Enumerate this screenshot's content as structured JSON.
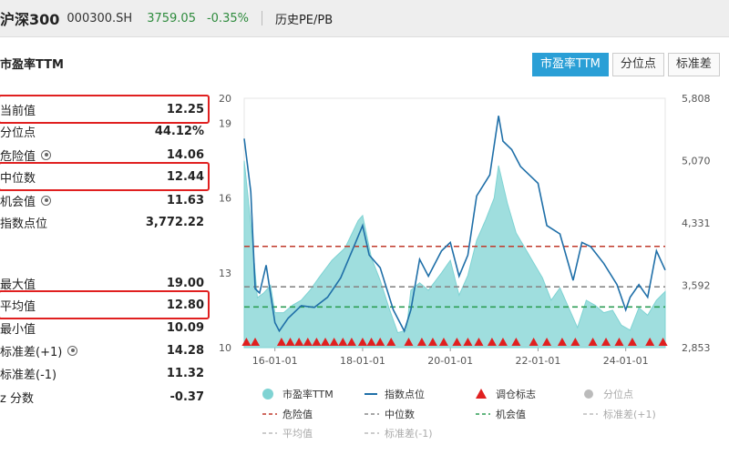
{
  "header": {
    "title": "沪深300",
    "code": "000300.SH",
    "price": "3759.05",
    "change": "-0.35%",
    "history_label": "历史PE/PB"
  },
  "section_title": "市盈率TTM",
  "tabs": [
    "市盈率TTM",
    "分位点",
    "标准差"
  ],
  "stats": [
    {
      "label": "当前值",
      "value": "12.25",
      "highlight": true
    },
    {
      "label": "分位点",
      "value": "44.12%"
    },
    {
      "label": "危险值",
      "value": "14.06",
      "icon": "gear-icon"
    },
    {
      "label": "中位数",
      "value": "12.44",
      "highlight": true
    },
    {
      "label": "机会值",
      "value": "11.63",
      "icon": "gear-icon"
    },
    {
      "label": "指数点位",
      "value": "3,772.22"
    },
    {
      "label": "最大值",
      "value": "19.00"
    },
    {
      "label": "平均值",
      "value": "12.80",
      "highlight": true
    },
    {
      "label": "最小值",
      "value": "10.09"
    },
    {
      "label": "标准差(+1)",
      "value": "14.28",
      "icon": "gear-icon"
    },
    {
      "label": "标准差(-1)",
      "value": "11.32"
    },
    {
      "label": "z 分数",
      "value": "-0.37"
    }
  ],
  "colors": {
    "pe_area": "#7fd3d3",
    "index_line": "#1f6fa8",
    "danger": "#c0392b",
    "median": "#888888",
    "opportunity": "#2e9e55",
    "marker": "#e02020",
    "accent": "#2a9fd6",
    "highlight_box": "#e02020"
  },
  "chart_data": {
    "type": "area",
    "x_ticks": [
      "16-01-01",
      "18-01-01",
      "20-01-01",
      "22-01-01",
      "24-01-01"
    ],
    "y_left_ticks": [
      "10",
      "13",
      "16",
      "19",
      "20"
    ],
    "y_right_ticks": [
      "2,853",
      "3,592",
      "4,331",
      "5,070",
      "5,808"
    ],
    "y_left_range": [
      10,
      20
    ],
    "y_right_range": [
      2853,
      5808
    ],
    "x_range": [
      2015.3,
      2024.9
    ],
    "reference_lines": {
      "danger": 14.06,
      "median": 12.44,
      "opportunity": 11.63
    },
    "series": [
      {
        "name": "市盈率TTM",
        "axis": "left",
        "x": [
          2015.3,
          2015.45,
          2015.6,
          2015.75,
          2015.9,
          2016.0,
          2016.2,
          2016.4,
          2016.6,
          2016.8,
          2017.0,
          2017.3,
          2017.6,
          2017.9,
          2018.0,
          2018.2,
          2018.4,
          2018.6,
          2018.8,
          2019.0,
          2019.1,
          2019.3,
          2019.5,
          2019.8,
          2020.0,
          2020.2,
          2020.4,
          2020.6,
          2020.8,
          2021.0,
          2021.1,
          2021.3,
          2021.5,
          2021.7,
          2021.9,
          2022.1,
          2022.3,
          2022.5,
          2022.7,
          2022.9,
          2023.1,
          2023.3,
          2023.5,
          2023.7,
          2023.9,
          2024.1,
          2024.3,
          2024.5,
          2024.7,
          2024.9
        ],
        "values": [
          17.5,
          15.0,
          12.0,
          12.2,
          12.5,
          11.4,
          11.4,
          11.7,
          11.9,
          12.3,
          12.8,
          13.5,
          14.0,
          15.1,
          15.3,
          13.6,
          12.7,
          11.6,
          10.6,
          10.7,
          12.3,
          12.6,
          12.3,
          13.0,
          13.5,
          12.1,
          12.9,
          14.3,
          15.1,
          16.0,
          17.3,
          15.8,
          14.6,
          14.0,
          13.4,
          12.8,
          11.9,
          12.4,
          11.6,
          10.8,
          11.9,
          11.7,
          11.4,
          11.5,
          10.9,
          10.7,
          11.6,
          11.3,
          11.9,
          12.25
        ]
      },
      {
        "name": "指数点位",
        "axis": "right",
        "x": [
          2015.3,
          2015.45,
          2015.55,
          2015.65,
          2015.8,
          2016.0,
          2016.1,
          2016.3,
          2016.6,
          2016.9,
          2017.2,
          2017.5,
          2017.8,
          2018.0,
          2018.15,
          2018.4,
          2018.7,
          2018.95,
          2019.1,
          2019.3,
          2019.5,
          2019.8,
          2020.0,
          2020.2,
          2020.4,
          2020.6,
          2020.9,
          2021.1,
          2021.2,
          2021.4,
          2021.6,
          2021.8,
          2022.0,
          2022.2,
          2022.5,
          2022.8,
          2023.0,
          2023.2,
          2023.5,
          2023.8,
          2024.0,
          2024.1,
          2024.3,
          2024.5,
          2024.7,
          2024.9
        ],
        "values": [
          5330,
          4700,
          3550,
          3500,
          3830,
          3150,
          3050,
          3200,
          3350,
          3330,
          3450,
          3680,
          4050,
          4300,
          3950,
          3800,
          3300,
          3050,
          3300,
          3900,
          3700,
          4000,
          4100,
          3700,
          3950,
          4650,
          4900,
          5600,
          5300,
          5200,
          5000,
          4900,
          4800,
          4300,
          4200,
          3650,
          4100,
          4050,
          3850,
          3600,
          3300,
          3450,
          3600,
          3450,
          4000,
          3772
        ]
      },
      {
        "name": "调仓标志",
        "type": "marker",
        "x": [
          2015.35,
          2015.55,
          2016.15,
          2016.35,
          2016.55,
          2016.75,
          2016.95,
          2017.15,
          2017.35,
          2017.55,
          2017.75,
          2018.0,
          2018.2,
          2018.4,
          2018.65,
          2019.05,
          2019.35,
          2019.6,
          2019.85,
          2020.15,
          2020.4,
          2020.65,
          2020.95,
          2021.2,
          2021.5,
          2021.9,
          2022.2,
          2022.55,
          2022.85,
          2023.25,
          2023.55,
          2023.85,
          2024.15,
          2024.55,
          2024.85
        ]
      }
    ],
    "legend": [
      {
        "name": "市盈率TTM",
        "style": "area"
      },
      {
        "name": "指数点位",
        "style": "line"
      },
      {
        "name": "调仓标志",
        "style": "triangle"
      },
      {
        "name": "分位点",
        "style": "dot",
        "disabled": true
      },
      {
        "name": "危险值",
        "style": "dashed"
      },
      {
        "name": "中位数",
        "style": "dashed"
      },
      {
        "name": "机会值",
        "style": "dashed"
      },
      {
        "name": "标准差(+1)",
        "style": "dashed",
        "disabled": true
      },
      {
        "name": "平均值",
        "style": "dashed",
        "disabled": true
      },
      {
        "name": "标准差(-1)",
        "style": "dashed",
        "disabled": true
      }
    ]
  }
}
